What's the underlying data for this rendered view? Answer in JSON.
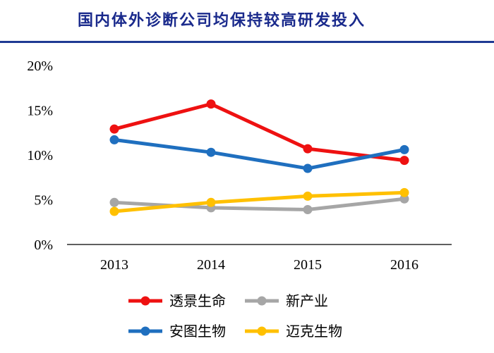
{
  "title": "国内体外诊断公司均保持较高研发投入",
  "colors": {
    "title": "#1a2a8c",
    "rule": "#1f3a93"
  },
  "chart_data": {
    "type": "line",
    "categories": [
      "2013",
      "2014",
      "2015",
      "2016"
    ],
    "ylim": [
      0,
      20
    ],
    "yticks": [
      0,
      5,
      10,
      15,
      20
    ],
    "ytick_labels": [
      "0%",
      "5%",
      "10%",
      "15%",
      "20%"
    ],
    "xlabel": "",
    "ylabel": "",
    "grid": false,
    "legend_position": "bottom",
    "series": [
      {
        "name": "透景生命",
        "color": "#ee1111",
        "values": [
          12.9,
          15.7,
          10.7,
          9.4
        ]
      },
      {
        "name": "新产业",
        "color": "#a6a6a6",
        "values": [
          4.7,
          4.1,
          3.9,
          5.1
        ]
      },
      {
        "name": "安图生物",
        "color": "#1f6fbf",
        "values": [
          11.7,
          10.3,
          8.5,
          10.6
        ]
      },
      {
        "name": "迈克生物",
        "color": "#ffc000",
        "values": [
          3.7,
          4.7,
          5.4,
          5.8
        ]
      }
    ]
  }
}
